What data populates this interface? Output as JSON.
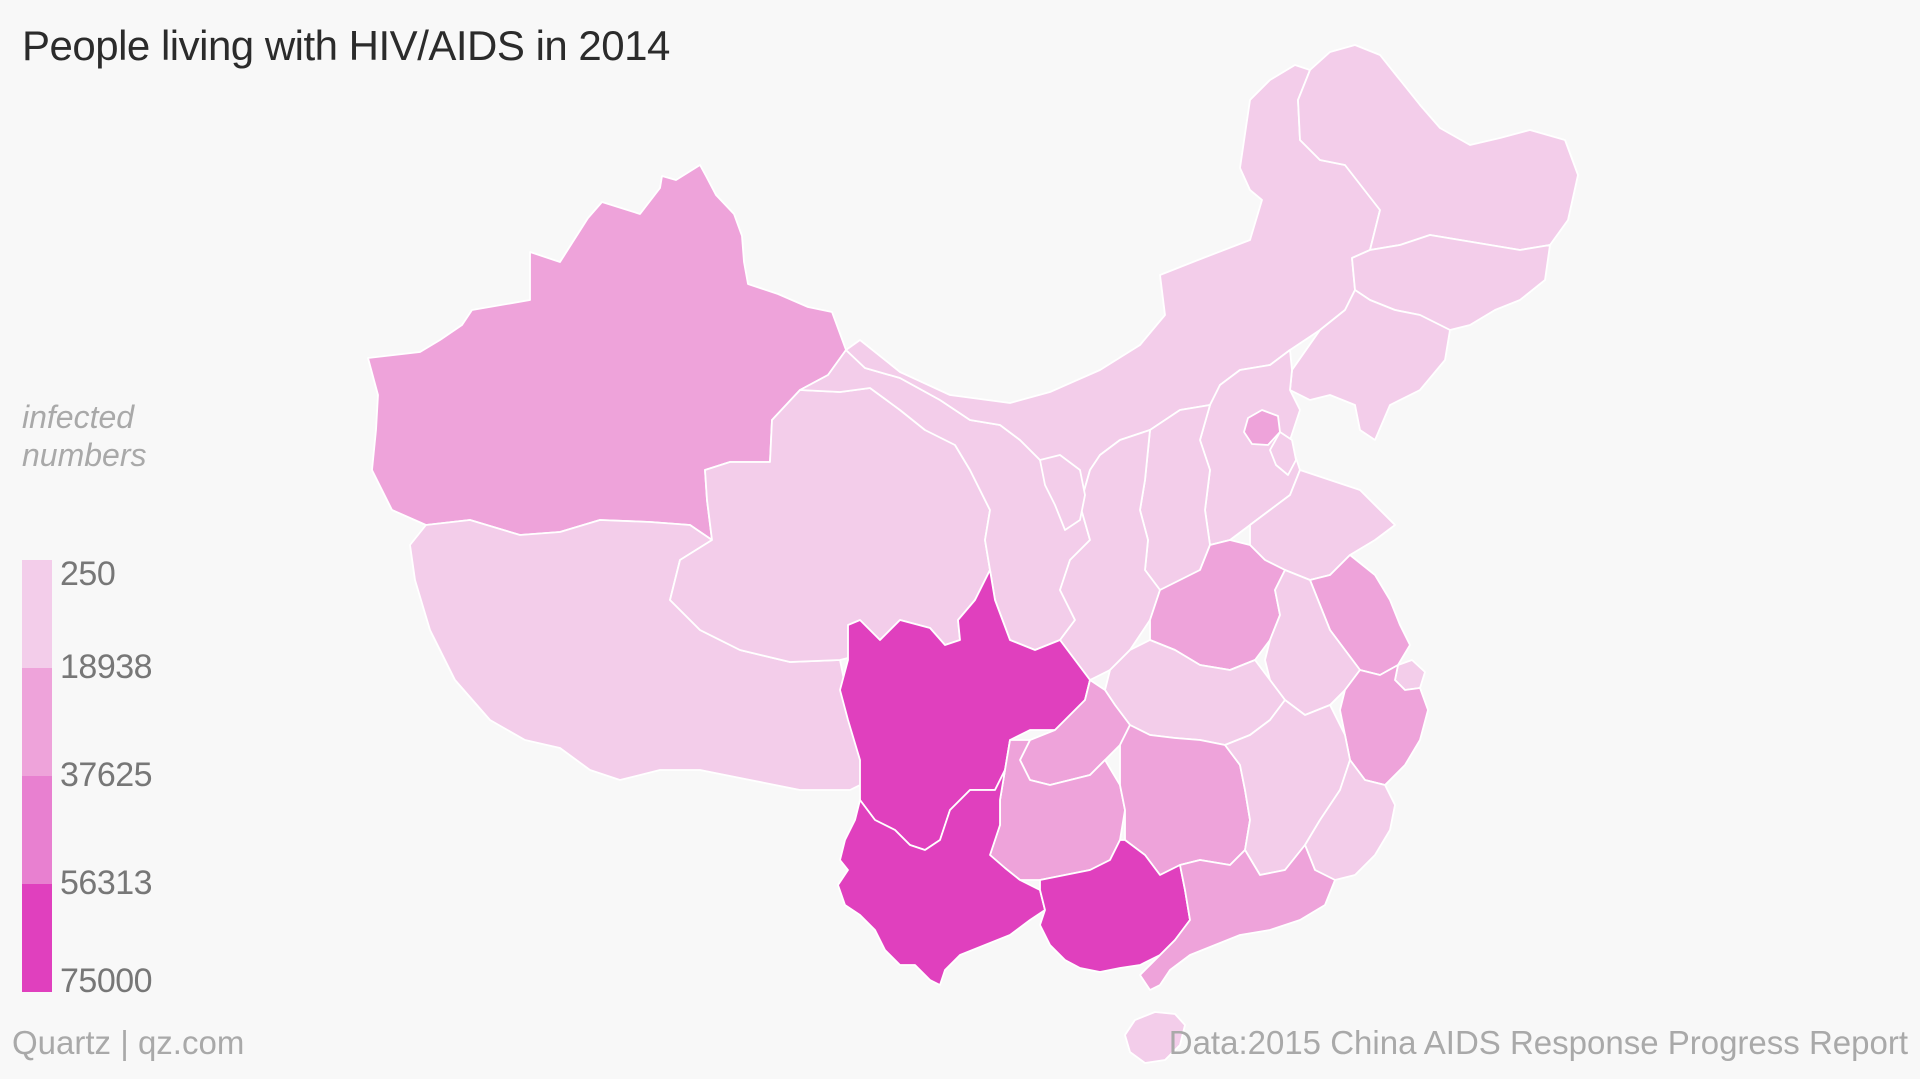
{
  "title": "People living with HIV/AIDS in 2014",
  "legend": {
    "title_line1": "infected",
    "title_line2": "numbers",
    "classes": [
      {
        "label": "250",
        "color": "#f3cdea"
      },
      {
        "label": "18938",
        "color": "#eea3da"
      },
      {
        "label": "37625",
        "color": "#e880d0"
      },
      {
        "label": "56313",
        "color": "#e040be"
      },
      {
        "label": "75000",
        "color": "#e040be"
      }
    ]
  },
  "footer": {
    "source_left": "Quartz | qz.com",
    "source_right": "Data:2015 China AIDS Response Progress Report"
  },
  "colors": {
    "background": "#f8f8f8",
    "border": "#ffffff",
    "low": "#f3cdea",
    "mid": "#eea3da",
    "high": "#e040be"
  },
  "map": {
    "regions": [
      {
        "id": "xinjiang",
        "level": "mid"
      },
      {
        "id": "tibet",
        "level": "low"
      },
      {
        "id": "qinghai",
        "level": "low"
      },
      {
        "id": "gansu",
        "level": "low"
      },
      {
        "id": "inner-mongolia",
        "level": "low"
      },
      {
        "id": "heilongjiang",
        "level": "low"
      },
      {
        "id": "jilin",
        "level": "low"
      },
      {
        "id": "liaoning",
        "level": "low"
      },
      {
        "id": "hebei",
        "level": "low"
      },
      {
        "id": "beijing",
        "level": "mid"
      },
      {
        "id": "tianjin",
        "level": "low"
      },
      {
        "id": "shanxi",
        "level": "low"
      },
      {
        "id": "shaanxi",
        "level": "low"
      },
      {
        "id": "ningxia",
        "level": "low"
      },
      {
        "id": "shandong",
        "level": "low"
      },
      {
        "id": "henan",
        "level": "mid"
      },
      {
        "id": "jiangsu",
        "level": "mid"
      },
      {
        "id": "anhui",
        "level": "low"
      },
      {
        "id": "shanghai",
        "level": "low"
      },
      {
        "id": "zhejiang",
        "level": "mid"
      },
      {
        "id": "hubei",
        "level": "low"
      },
      {
        "id": "sichuan",
        "level": "high"
      },
      {
        "id": "chongqing",
        "level": "mid"
      },
      {
        "id": "guizhou",
        "level": "mid"
      },
      {
        "id": "hunan",
        "level": "mid"
      },
      {
        "id": "jiangxi",
        "level": "low"
      },
      {
        "id": "fujian",
        "level": "low"
      },
      {
        "id": "yunnan",
        "level": "high"
      },
      {
        "id": "guangxi",
        "level": "high"
      },
      {
        "id": "guangdong",
        "level": "mid"
      },
      {
        "id": "hainan",
        "level": "low"
      }
    ]
  }
}
